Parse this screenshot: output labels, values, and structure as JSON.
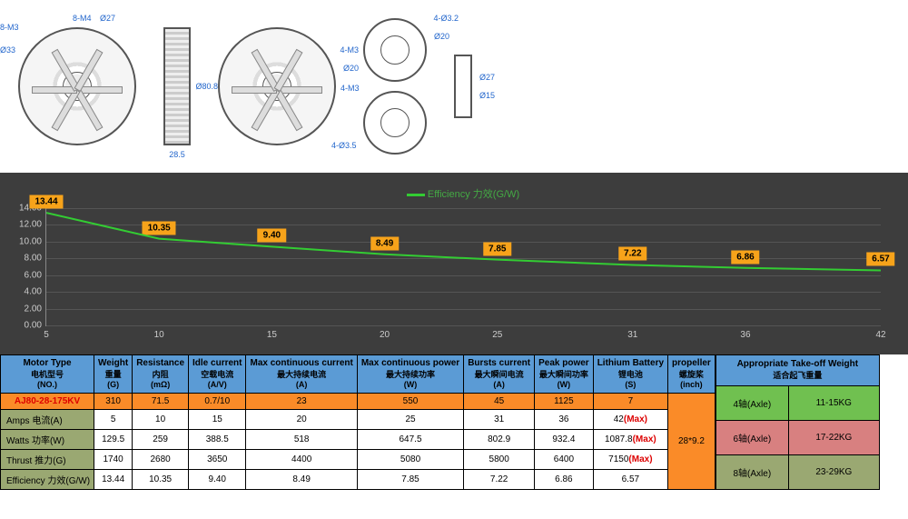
{
  "diagrams": {
    "labels": [
      "8-M3",
      "Ø33",
      "8-M4",
      "Ø27",
      "28.5",
      "Ø80.8",
      "4-M3",
      "Ø20",
      "4-Ø3.2",
      "Ø20",
      "4-M3",
      "4-Ø3.5",
      "Ø27",
      "Ø15"
    ]
  },
  "chart": {
    "title": "Efficiency 力效(G/W)",
    "ylim": [
      0,
      14
    ],
    "ytick_step": 2,
    "xticks": [
      5,
      10,
      15,
      20,
      25,
      31,
      36,
      42
    ],
    "values": [
      13.44,
      10.35,
      9.4,
      8.49,
      7.85,
      7.22,
      6.86,
      6.57
    ],
    "line_color": "#33cc33",
    "label_bg": "#f7a31a",
    "background": "#3d3d3d"
  },
  "spec_table": {
    "headers": [
      {
        "en": "Motor Type",
        "cn": "电机型号",
        "unit": "(NO.)"
      },
      {
        "en": "Weight",
        "cn": "重量",
        "unit": "(G)"
      },
      {
        "en": "Resistance",
        "cn": "内阻",
        "unit": "(mΩ)"
      },
      {
        "en": "Idle current",
        "cn": "空载电流",
        "unit": "(A/V)"
      },
      {
        "en": "Max continuous current",
        "cn": "最大持续电流",
        "unit": "(A)"
      },
      {
        "en": "Max continuous power",
        "cn": "最大持续功率",
        "unit": "(W)"
      },
      {
        "en": "Bursts current",
        "cn": "最大瞬间电流",
        "unit": "(A)"
      },
      {
        "en": "Peak power",
        "cn": "最大瞬间功率",
        "unit": "(W)"
      },
      {
        "en": "Lithium Battery",
        "cn": "锂电池",
        "unit": "(S)"
      },
      {
        "en": "propeller",
        "cn": "螺旋桨",
        "unit": "(inch)"
      }
    ],
    "model": "AJ80-28-175KV",
    "model_row": [
      "310",
      "71.5",
      "0.7/10",
      "23",
      "550",
      "45",
      "1125",
      "7"
    ],
    "propeller": "28*9.2",
    "data_rows": [
      {
        "label": "Amps 电流(A)",
        "vals": [
          "5",
          "10",
          "15",
          "20",
          "25",
          "31",
          "36",
          "42"
        ],
        "max": true
      },
      {
        "label": "Watts 功率(W)",
        "vals": [
          "129.5",
          "259",
          "388.5",
          "518",
          "647.5",
          "802.9",
          "932.4",
          "1087.8"
        ],
        "max": true
      },
      {
        "label": "Thrust 推力(G)",
        "vals": [
          "1740",
          "2680",
          "3650",
          "4400",
          "5080",
          "5800",
          "6400",
          "7150"
        ],
        "max": true
      },
      {
        "label": "Efficiency 力效(G/W)",
        "vals": [
          "13.44",
          "10.35",
          "9.40",
          "8.49",
          "7.85",
          "7.22",
          "6.86",
          "6.57"
        ],
        "max": false
      }
    ]
  },
  "weight_table": {
    "header_en": "Appropriate Take-off Weight",
    "header_cn": "适合起飞重量",
    "rows": [
      {
        "axle": "4轴(Axle)",
        "weight": "11-15KG",
        "class": "green-cell"
      },
      {
        "axle": "6轴(Axle)",
        "weight": "17-22KG",
        "class": "pink-cell"
      },
      {
        "axle": "8轴(Axle)",
        "weight": "23-29KG",
        "class": "olive-cell"
      }
    ]
  }
}
